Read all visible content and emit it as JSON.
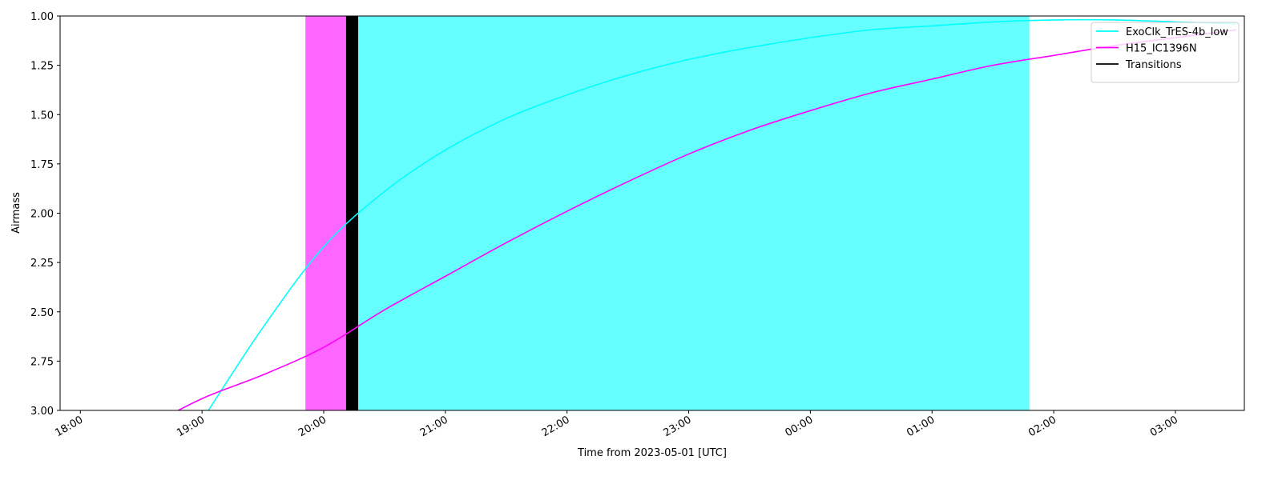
{
  "chart_data": {
    "type": "line",
    "xlabel": "Time from 2023-05-01 [UTC]",
    "ylabel": "Airmass",
    "x": [
      "18:30",
      "19:00",
      "19:30",
      "20:00",
      "20:30",
      "21:00",
      "21:30",
      "22:00",
      "22:30",
      "23:00",
      "23:30",
      "00:00",
      "00:30",
      "01:00",
      "01:30",
      "02:00",
      "02:30",
      "03:00",
      "03:30"
    ],
    "series": [
      {
        "name": "ExoClk_TrES-4b_low",
        "color": "#00ffff",
        "values": [
          null,
          3.05,
          2.58,
          2.17,
          1.89,
          1.68,
          1.52,
          1.4,
          1.3,
          1.22,
          1.16,
          1.11,
          1.07,
          1.05,
          1.03,
          1.02,
          1.02,
          1.03,
          1.04
        ]
      },
      {
        "name": "H15_IC1396N",
        "color": "#ff00ff",
        "values": [
          3.1,
          2.94,
          2.82,
          2.68,
          2.49,
          2.32,
          2.15,
          1.99,
          1.84,
          1.7,
          1.58,
          1.48,
          1.39,
          1.32,
          1.25,
          1.2,
          1.15,
          1.11,
          1.07
        ]
      }
    ],
    "spans": [
      {
        "start": "19:51",
        "end": "20:11",
        "color": "#ff66ff"
      },
      {
        "start": "20:17",
        "end": "01:48",
        "color": "#66ffff"
      }
    ],
    "transitions": {
      "name": "Transitions",
      "color": "#000000",
      "start": "20:11",
      "end": "20:17"
    },
    "xlim": [
      "17:50",
      "03:34"
    ],
    "xticks": [
      "18:00",
      "19:00",
      "20:00",
      "21:00",
      "22:00",
      "23:00",
      "00:00",
      "01:00",
      "02:00",
      "03:00"
    ],
    "ylim": [
      1,
      3
    ],
    "y_inverted": true,
    "yticks": [
      {
        "value": 1,
        "label": "1.00"
      },
      {
        "value": 1.25,
        "label": "1.25"
      },
      {
        "value": 1.5,
        "label": "1.50"
      },
      {
        "value": 1.75,
        "label": "1.75"
      },
      {
        "value": 2,
        "label": "2.00"
      },
      {
        "value": 2.25,
        "label": "2.25"
      },
      {
        "value": 2.5,
        "label": "2.50"
      },
      {
        "value": 2.75,
        "label": "2.75"
      },
      {
        "value": 3,
        "label": "3.00"
      }
    ],
    "legend": "upper right"
  }
}
